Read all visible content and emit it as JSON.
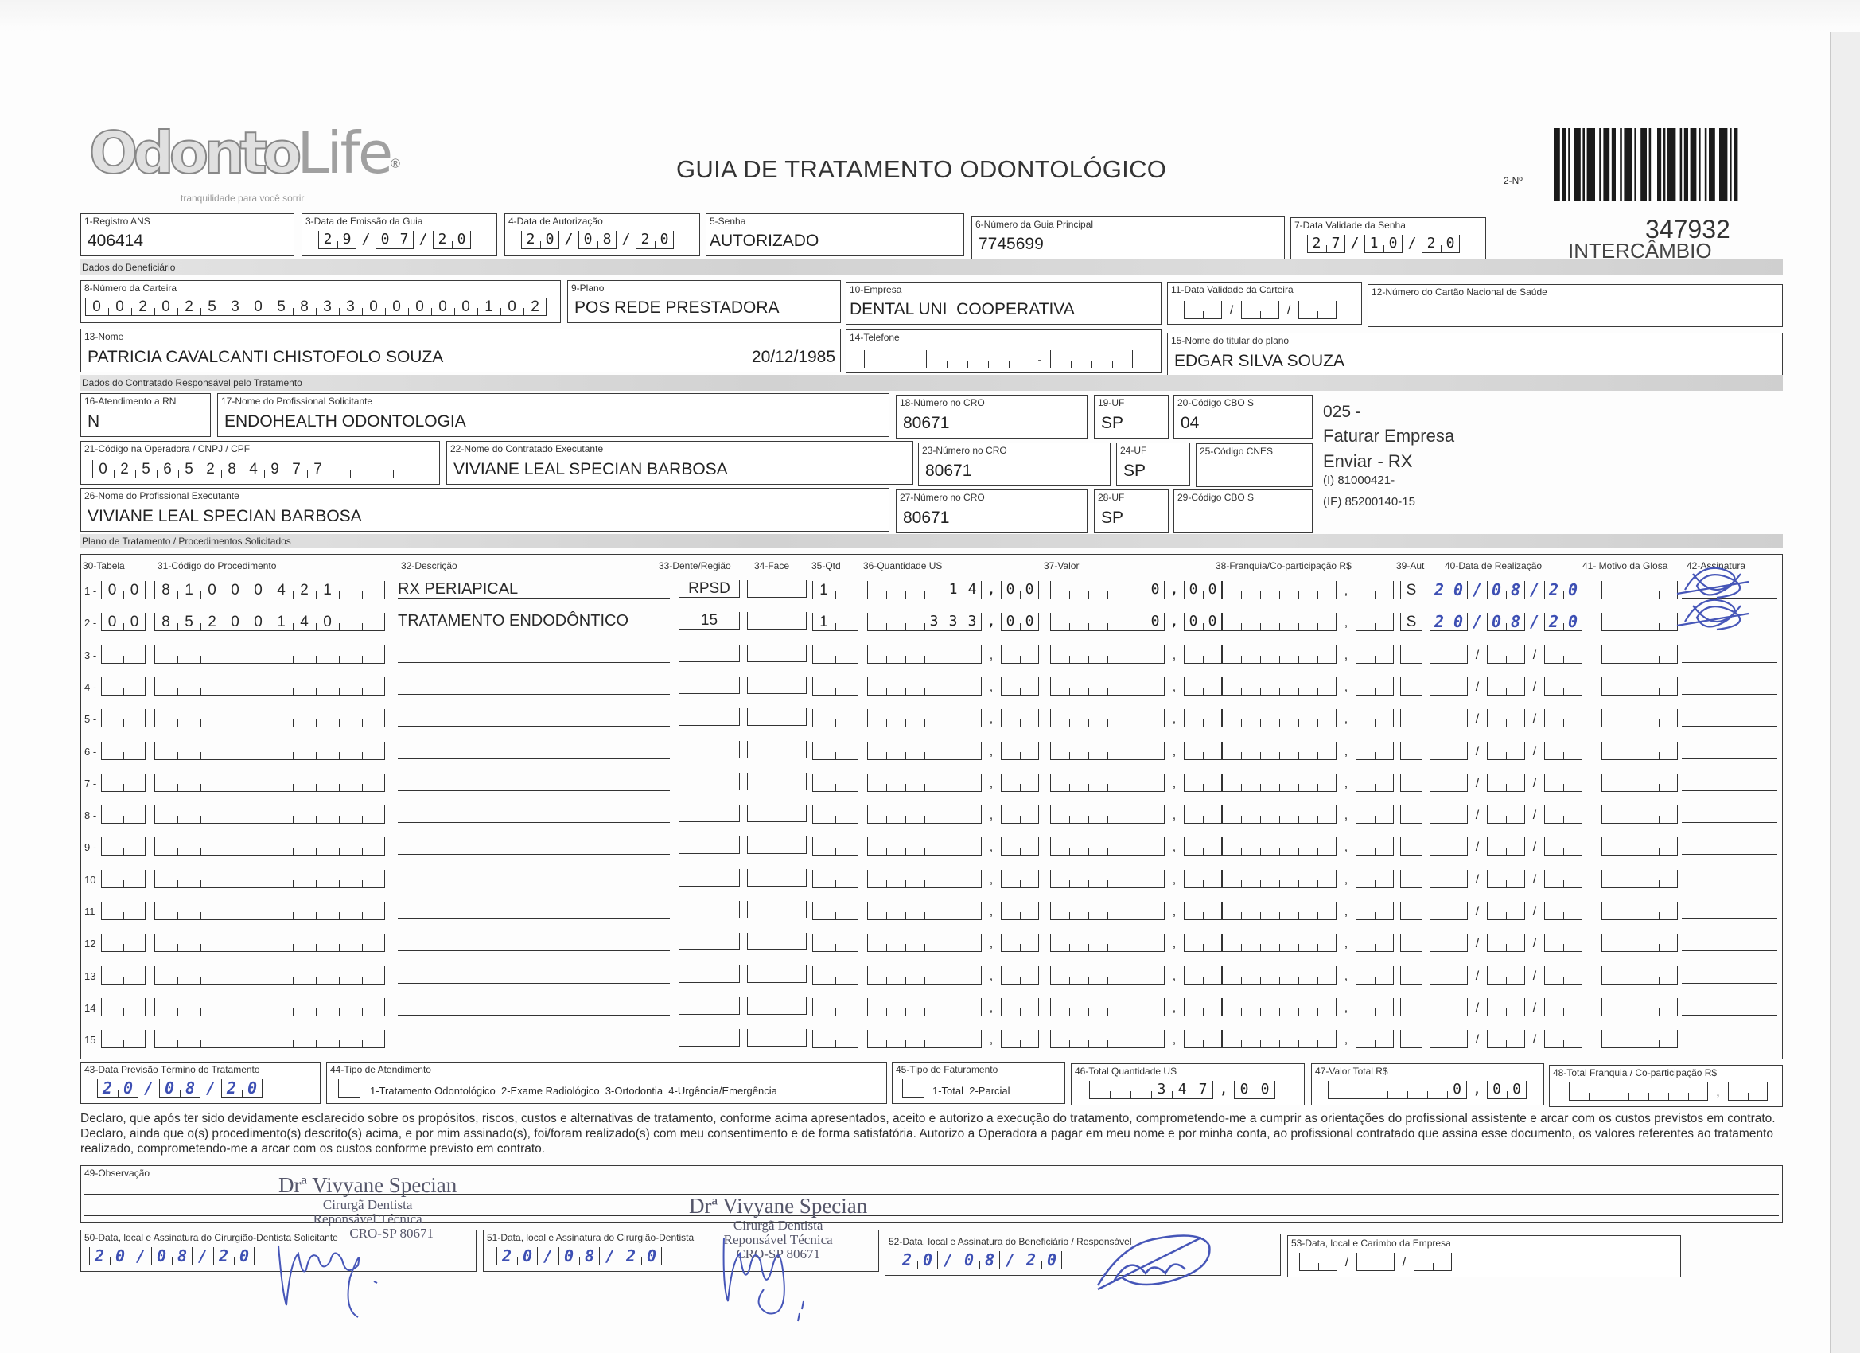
{
  "logo": {
    "brand_a": "Odonto",
    "brand_b": "Life",
    "registered": "®",
    "tagline": "tranquilidade para você sorrir"
  },
  "title": "GUIA DE TRATAMENTO ODONTOLÓGICO",
  "guide_number_label": "2-Nº",
  "guide_number": "347932",
  "guide_type": "INTERCÂMBIO",
  "header": {
    "registro_ans": {
      "label": "1-Registro ANS",
      "value": "406414"
    },
    "data_emissao": {
      "label": "3-Data de Emissão da Guia",
      "value": "29/07/20"
    },
    "data_autorizacao": {
      "label": "4-Data de Autorização",
      "value": "20/08/20"
    },
    "senha": {
      "label": "5-Senha",
      "value": "AUTORIZADO"
    },
    "guia_principal": {
      "label": "6-Número da Guia Principal",
      "value": "7745699"
    },
    "validade_senha": {
      "label": "7-Data Validade da Senha",
      "value": "27/10/20"
    }
  },
  "beneficiario": {
    "section": "Dados do Beneficiário",
    "carteira": {
      "label": "8-Número da Carteira",
      "value": "00202530583300000102"
    },
    "plano": {
      "label": "9-Plano",
      "value": "POS REDE PRESTADORA"
    },
    "empresa": {
      "label": "10-Empresa",
      "value": "DENTAL UNI  COOPERATIVA"
    },
    "validade_carteira": {
      "label": "11-Data Validade da Carteira",
      "value": ""
    },
    "cns": {
      "label": "12-Número do Cartão Nacional de Saúde",
      "value": ""
    },
    "nome": {
      "label": "13-Nome",
      "value": "PATRICIA CAVALCANTI CHISTOFOLO SOUZA",
      "birth": "20/12/1985"
    },
    "telefone": {
      "label": "14-Telefone",
      "value": ""
    },
    "titular": {
      "label": "15-Nome do titular do plano",
      "value": "EDGAR SILVA SOUZA"
    }
  },
  "contratado": {
    "section": "Dados do Contratado Responsável pelo Tratamento",
    "atendimento_rn": {
      "label": "16-Atendimento a RN",
      "value": "N"
    },
    "solicitante": {
      "label": "17-Nome do Profissional Solicitante",
      "value": "ENDOHEALTH ODONTOLOGIA"
    },
    "cro18": {
      "label": "18-Número no CRO",
      "value": "80671"
    },
    "uf19": {
      "label": "19-UF",
      "value": "SP"
    },
    "cbo20": {
      "label": "20-Código CBO S",
      "value": "04"
    },
    "codigo_operadora": {
      "label": "21-Código na Operadora / CNPJ / CPF",
      "value": "02565284977"
    },
    "executante": {
      "label": "22-Nome do Contratado Executante",
      "value": "VIVIANE LEAL SPECIAN BARBOSA"
    },
    "cro23": {
      "label": "23-Número no CRO",
      "value": "80671"
    },
    "uf24": {
      "label": "24-UF",
      "value": "SP"
    },
    "cnes": {
      "label": "25-Código CNES",
      "value": ""
    },
    "prof_executante": {
      "label": "26-Nome do Profissional Executante",
      "value": "VIVIANE LEAL SPECIAN BARBOSA"
    },
    "cro27": {
      "label": "27-Número no CRO",
      "value": "80671"
    },
    "uf28": {
      "label": "28-UF",
      "value": "SP"
    },
    "cbo29": {
      "label": "29-Código CBO S",
      "value": ""
    }
  },
  "notes": [
    "025 -",
    "Faturar Empresa",
    "Enviar - RX",
    "(I) 81000421-",
    "(IF) 85200140-15"
  ],
  "plano": {
    "section": "Plano de Tratamento / Procedimentos Solicitados",
    "columns": {
      "tabela": "30-Tabela",
      "codigo": "31-Código do Procedimento",
      "descricao": "32-Descrição",
      "dente": "33-Dente/Região",
      "face": "34-Face",
      "qtd": "35-Qtd",
      "qtd_us": "36-Quantidade US",
      "valor": "37-Valor",
      "franquia": "38-Franquia/Co-participação R$",
      "aut": "39-Aut",
      "data": "40-Data de Realização",
      "glosa": "41- Motivo da Glosa",
      "assinatura": "42-Assinatura"
    },
    "rows": [
      {
        "n": "1 -",
        "tabela": "00",
        "codigo": "81000421",
        "descricao": "RX PERIAPICAL",
        "dente": "RPSD",
        "face": "",
        "qtd": "1",
        "qtd_us": "14,00",
        "valor": "0,00",
        "franquia": "",
        "aut": "S",
        "data": "20/08/20",
        "glosa": "",
        "signed": true
      },
      {
        "n": "2 -",
        "tabela": "00",
        "codigo": "85200140",
        "descricao": "TRATAMENTO ENDODÔNTICO",
        "dente": "15",
        "face": "",
        "qtd": "1",
        "qtd_us": "333,00",
        "valor": "0,00",
        "franquia": "",
        "aut": "S",
        "data": "20/08/20",
        "glosa": "",
        "signed": true
      },
      {
        "n": "3 -"
      },
      {
        "n": "4 -"
      },
      {
        "n": "5 -"
      },
      {
        "n": "6 -"
      },
      {
        "n": "7 -"
      },
      {
        "n": "8 -"
      },
      {
        "n": "9 -"
      },
      {
        "n": "10"
      },
      {
        "n": "11"
      },
      {
        "n": "12"
      },
      {
        "n": "13"
      },
      {
        "n": "14"
      },
      {
        "n": "15"
      }
    ]
  },
  "totals": {
    "previsao": {
      "label": "43-Data Previsão Término do Tratamento",
      "value": "20/08/20"
    },
    "tipo_atendimento": {
      "label": "44-Tipo de Atendimento",
      "options": "1-Tratamento Odontológico  2-Exame Radiológico  3-Ortodontia  4-Urgência/Emergência",
      "value": ""
    },
    "tipo_faturamento": {
      "label": "45-Tipo de Faturamento",
      "options": "1-Total  2-Parcial",
      "value": ""
    },
    "total_us": {
      "label": "46-Total Quantidade US",
      "value": "347,00"
    },
    "valor_total": {
      "label": "47-Valor Total R$",
      "value": "0,00"
    },
    "total_franquia": {
      "label": "48-Total Franquia / Co-participação R$",
      "value": ""
    }
  },
  "declaration": "Declaro, que após ter sido devidamente esclarecido sobre os propósitos, riscos, custos e alternativas de tratamento, conforme acima apresentados, aceito e autorizo a execução do tratamento, comprometendo-me a cumprir as orientações do profissional assistente e arcar com os custos previstos em contrato. Declaro, ainda que o(s) procedimento(s) descrito(s) acima, e por mim assinado(s), foi/foram realizado(s) com meu consentimento e de forma satisfatória. Autorizo a Operadora a pagar em meu nome e por minha conta, ao profissional contratado que assina esse documento, os valores referentes ao tratamento realizado, comprometendo-me a arcar com os custos conforme previsto em contrato.",
  "observacao": {
    "label": "49-Observação",
    "value": ""
  },
  "stamp": {
    "name": "Drª Vivyane Specian",
    "role": "Cirurgã Dentista",
    "resp": "Reponsável Técnica",
    "cro": "CRO-SP 80671"
  },
  "signatures": {
    "s50": {
      "label": "50-Data, local e Assinatura do Cirurgião-Dentista Solicitante",
      "date": "20/08/20"
    },
    "s51": {
      "label": "51-Data, local e Assinatura do Cirurgião-Dentista",
      "date": "20/08/20"
    },
    "s52": {
      "label": "52-Data, local e Assinatura do Beneficiário / Responsável",
      "date": "20/08/20"
    },
    "s53": {
      "label": "53-Data, local e Carimbo da Empresa",
      "date": ""
    }
  },
  "colors": {
    "ink": "#2a2a2a",
    "handwriting": "#3d4fb3",
    "band": "#d6d6d6"
  }
}
